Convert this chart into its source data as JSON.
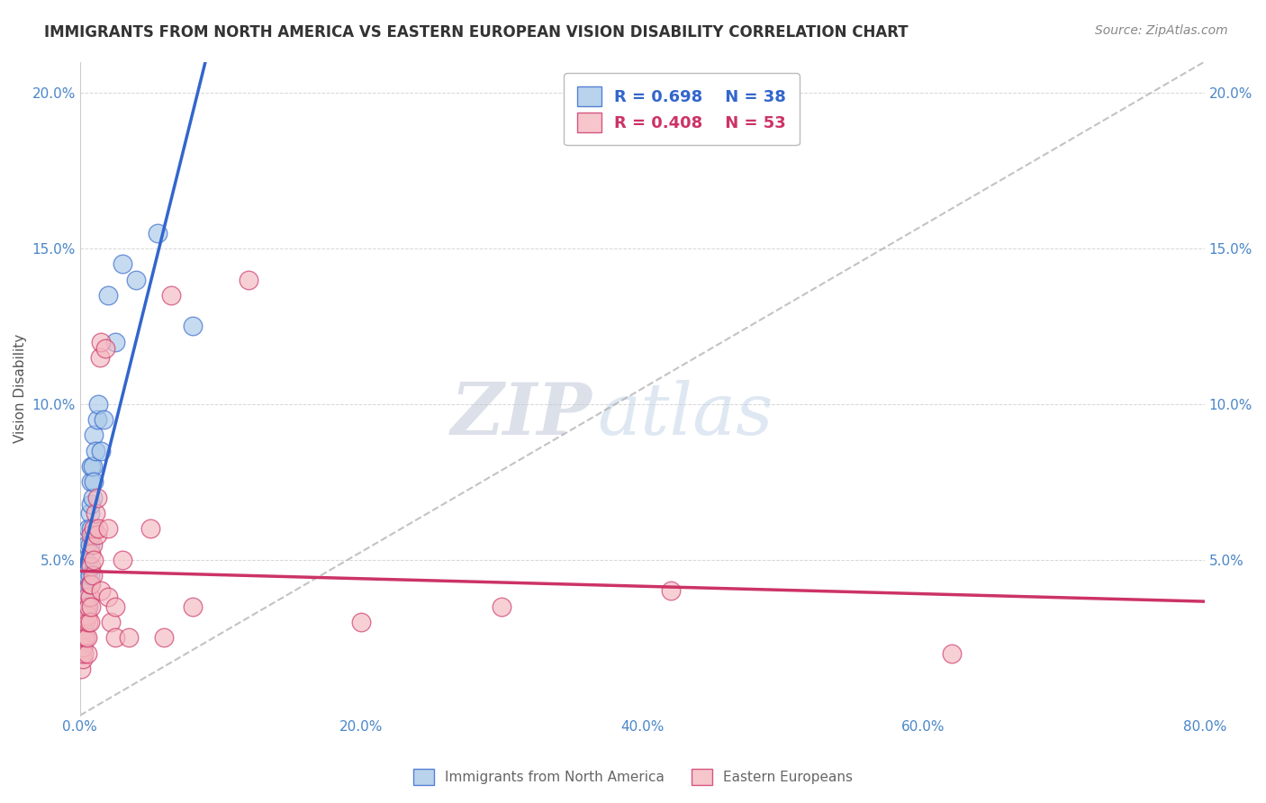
{
  "title": "IMMIGRANTS FROM NORTH AMERICA VS EASTERN EUROPEAN VISION DISABILITY CORRELATION CHART",
  "source": "Source: ZipAtlas.com",
  "ylabel": "Vision Disability",
  "xlim": [
    0,
    0.8
  ],
  "ylim": [
    0,
    0.21
  ],
  "xticks": [
    0.0,
    0.2,
    0.4,
    0.6,
    0.8
  ],
  "xtick_labels": [
    "0.0%",
    "20.0%",
    "40.0%",
    "60.0%",
    "80.0%"
  ],
  "yticks": [
    0.0,
    0.05,
    0.1,
    0.15,
    0.2
  ],
  "ytick_labels": [
    "",
    "5.0%",
    "10.0%",
    "15.0%",
    "20.0%"
  ],
  "series1_color": "#a8c8e8",
  "series2_color": "#f4b8c0",
  "line1_color": "#3366cc",
  "line2_color": "#cc3366",
  "legend1_label": "Immigrants from North America",
  "legend2_label": "Eastern Europeans",
  "R1": 0.698,
  "N1": 38,
  "R2": 0.408,
  "N2": 53,
  "watermark_zip": "ZIP",
  "watermark_atlas": "atlas",
  "series1_x": [
    0.001,
    0.001,
    0.001,
    0.002,
    0.002,
    0.002,
    0.003,
    0.003,
    0.003,
    0.004,
    0.004,
    0.005,
    0.005,
    0.005,
    0.006,
    0.006,
    0.007,
    0.007,
    0.007,
    0.008,
    0.008,
    0.008,
    0.008,
    0.009,
    0.009,
    0.01,
    0.01,
    0.011,
    0.012,
    0.013,
    0.015,
    0.017,
    0.02,
    0.025,
    0.03,
    0.04,
    0.055,
    0.08
  ],
  "series1_y": [
    0.02,
    0.025,
    0.03,
    0.022,
    0.032,
    0.04,
    0.028,
    0.038,
    0.045,
    0.04,
    0.05,
    0.035,
    0.045,
    0.055,
    0.048,
    0.06,
    0.045,
    0.055,
    0.065,
    0.06,
    0.068,
    0.075,
    0.08,
    0.07,
    0.08,
    0.075,
    0.09,
    0.085,
    0.095,
    0.1,
    0.085,
    0.095,
    0.135,
    0.12,
    0.145,
    0.14,
    0.155,
    0.125
  ],
  "series2_x": [
    0.001,
    0.001,
    0.001,
    0.002,
    0.002,
    0.002,
    0.003,
    0.003,
    0.004,
    0.004,
    0.004,
    0.005,
    0.005,
    0.005,
    0.005,
    0.006,
    0.006,
    0.007,
    0.007,
    0.007,
    0.008,
    0.008,
    0.008,
    0.008,
    0.008,
    0.009,
    0.009,
    0.01,
    0.01,
    0.011,
    0.012,
    0.012,
    0.013,
    0.014,
    0.015,
    0.015,
    0.018,
    0.02,
    0.02,
    0.022,
    0.025,
    0.025,
    0.03,
    0.035,
    0.05,
    0.06,
    0.065,
    0.08,
    0.12,
    0.2,
    0.3,
    0.42,
    0.62
  ],
  "series2_y": [
    0.015,
    0.02,
    0.025,
    0.018,
    0.022,
    0.03,
    0.02,
    0.025,
    0.025,
    0.03,
    0.035,
    0.02,
    0.025,
    0.032,
    0.038,
    0.03,
    0.035,
    0.03,
    0.038,
    0.042,
    0.035,
    0.042,
    0.048,
    0.052,
    0.058,
    0.045,
    0.055,
    0.05,
    0.06,
    0.065,
    0.058,
    0.07,
    0.06,
    0.115,
    0.12,
    0.04,
    0.118,
    0.038,
    0.06,
    0.03,
    0.035,
    0.025,
    0.05,
    0.025,
    0.06,
    0.025,
    0.135,
    0.035,
    0.14,
    0.03,
    0.035,
    0.04,
    0.02
  ]
}
